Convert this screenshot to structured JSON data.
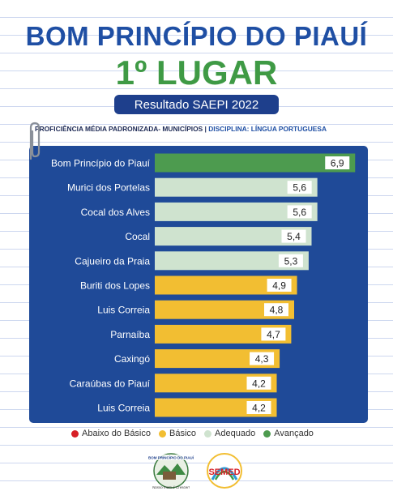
{
  "header": {
    "title": "BOM PRINCÍPIO DO PIAUÍ",
    "subtitle": "1º LUGAR",
    "badge": "Resultado SAEPI 2022"
  },
  "caption": {
    "main": "PROFICIÊNCIA MÉDIA PADRONIZADA- MUNICÍPIOS | ",
    "discipline": "DISCIPLINA: LÍNGUA PORTUGUESA"
  },
  "colors": {
    "abaixo": "#d71f26",
    "basico": "#f2be32",
    "adequado": "#cfe3cf",
    "avancado": "#4d9b4f",
    "panel": "#1f4a98",
    "title": "#1f4fa4"
  },
  "chart_data": {
    "type": "bar",
    "orientation": "horizontal",
    "categories": [
      "Bom Princípio do Piauí",
      "Murici dos Portelas",
      "Cocal dos Alves",
      "Cocal",
      "Cajueiro da Praia",
      "Buriti dos Lopes",
      "Luis Correia",
      "Parnaíba",
      "Caxingó",
      "Caraúbas do Piauí",
      "Luis Correia"
    ],
    "values": [
      6.9,
      5.6,
      5.6,
      5.4,
      5.3,
      4.9,
      4.8,
      4.7,
      4.3,
      4.2,
      4.2
    ],
    "value_labels": [
      "6,9",
      "5,6",
      "5,6",
      "5,4",
      "5,3",
      "4,9",
      "4,8",
      "4,7",
      "4,3",
      "4,2",
      "4,2"
    ],
    "levels": [
      "avancado",
      "adequado",
      "adequado",
      "adequado",
      "adequado",
      "basico",
      "basico",
      "basico",
      "basico",
      "basico",
      "basico"
    ],
    "xlim": [
      0,
      7.2
    ],
    "grid": false,
    "legend_position": "bottom"
  },
  "legend": [
    {
      "key": "abaixo",
      "label": "Abaixo do Básico"
    },
    {
      "key": "basico",
      "label": "Básico"
    },
    {
      "key": "adequado",
      "label": "Adequado"
    },
    {
      "key": "avancado",
      "label": "Avançado"
    }
  ],
  "logos": {
    "left_logo": "BOM PRINCÍPIO DO PIAUÍ",
    "left_slogan": "Nosso meta é Crescer!",
    "right_logo": "SEMED"
  }
}
